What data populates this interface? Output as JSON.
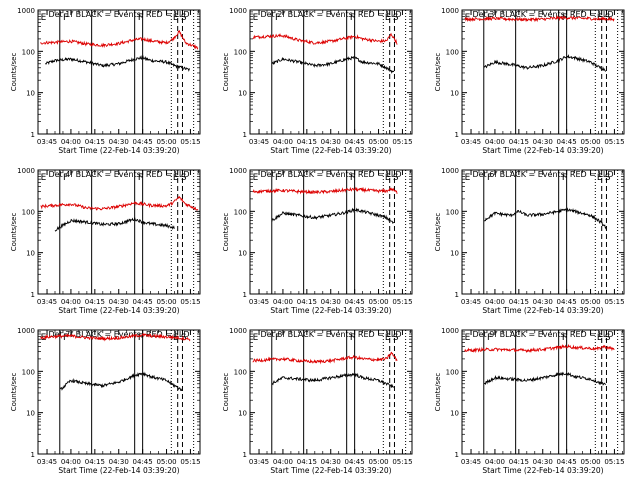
{
  "figure": {
    "background": "#ffffff",
    "colors": {
      "events": "#000000",
      "lld": "#dd0000",
      "axes": "#000000"
    }
  },
  "common": {
    "xlabel": "Start Time (22-Feb-14 03:39:20)",
    "ylabel": "Counts/sec",
    "x_ticks": [
      "03:45",
      "04:00",
      "04:15",
      "04:30",
      "04:45",
      "05:00",
      "05:15"
    ],
    "y_ticks": [
      "1",
      "10",
      "100",
      "1000"
    ],
    "y_scale": "log",
    "ylim": [
      1,
      1000
    ],
    "xlim": [
      "03:39:20",
      "05:21:00"
    ],
    "event_markers": {
      "solid_lines": [
        "03:53",
        "04:13",
        "04:40",
        "04:45"
      ],
      "dotted_lines": [
        "05:03",
        "05:17"
      ],
      "dashed_lines": [
        "05:07",
        "05:10"
      ],
      "labels": [
        {
          "text": "E",
          "x": "03:41"
        },
        {
          "text": "F",
          "x": "03:55"
        },
        {
          "text": "F",
          "x": "04:42"
        },
        {
          "text": "E",
          "x": "05:04"
        },
        {
          "text": "S",
          "x": "05:09"
        }
      ]
    }
  },
  "chart_data": [
    {
      "type": "line",
      "title": "Det 1f BLACK = Events, RED = LLD",
      "series": [
        {
          "name": "Events",
          "color": "#000000",
          "points": [
            [
              "03:44",
              50
            ],
            [
              "03:50",
              60
            ],
            [
              "04:00",
              65
            ],
            [
              "04:10",
              55
            ],
            [
              "04:20",
              45
            ],
            [
              "04:30",
              50
            ],
            [
              "04:40",
              65
            ],
            [
              "04:45",
              70
            ],
            [
              "04:50",
              60
            ],
            [
              "05:00",
              55
            ],
            [
              "05:05",
              45
            ],
            [
              "05:10",
              40
            ],
            [
              "05:15",
              35
            ]
          ]
        },
        {
          "name": "LLD",
          "color": "#dd0000",
          "points": [
            [
              "03:41",
              160
            ],
            [
              "03:50",
              165
            ],
            [
              "04:00",
              175
            ],
            [
              "04:10",
              150
            ],
            [
              "04:20",
              140
            ],
            [
              "04:30",
              155
            ],
            [
              "04:40",
              190
            ],
            [
              "04:45",
              200
            ],
            [
              "04:50",
              180
            ],
            [
              "05:00",
              160
            ],
            [
              "05:04",
              200
            ],
            [
              "05:08",
              300
            ],
            [
              "05:12",
              160
            ],
            [
              "05:20",
              120
            ]
          ]
        }
      ]
    },
    {
      "type": "line",
      "title": "Det 2f BLACK = Events, RED = LLD",
      "series": [
        {
          "name": "Events",
          "color": "#000000",
          "points": [
            [
              "03:53",
              50
            ],
            [
              "04:00",
              65
            ],
            [
              "04:10",
              55
            ],
            [
              "04:20",
              45
            ],
            [
              "04:30",
              50
            ],
            [
              "04:40",
              65
            ],
            [
              "04:45",
              70
            ],
            [
              "04:50",
              55
            ],
            [
              "05:00",
              50
            ],
            [
              "05:05",
              40
            ],
            [
              "05:10",
              30
            ]
          ]
        },
        {
          "name": "LLD",
          "color": "#dd0000",
          "points": [
            [
              "03:41",
              220
            ],
            [
              "03:50",
              230
            ],
            [
              "04:00",
              240
            ],
            [
              "04:10",
              185
            ],
            [
              "04:20",
              160
            ],
            [
              "04:30",
              175
            ],
            [
              "04:40",
              210
            ],
            [
              "04:45",
              230
            ],
            [
              "04:50",
              200
            ],
            [
              "05:00",
              175
            ],
            [
              "05:05",
              180
            ],
            [
              "05:08",
              260
            ],
            [
              "05:12",
              150
            ]
          ]
        }
      ]
    },
    {
      "type": "line",
      "title": "Det 3f BLACK = Events, RED = LLD",
      "series": [
        {
          "name": "Events",
          "color": "#000000",
          "points": [
            [
              "03:53",
              40
            ],
            [
              "04:00",
              55
            ],
            [
              "04:10",
              48
            ],
            [
              "04:20",
              40
            ],
            [
              "04:30",
              45
            ],
            [
              "04:40",
              60
            ],
            [
              "04:45",
              75
            ],
            [
              "04:50",
              70
            ],
            [
              "05:00",
              55
            ],
            [
              "05:05",
              42
            ],
            [
              "05:10",
              35
            ]
          ]
        },
        {
          "name": "LLD",
          "color": "#dd0000",
          "points": [
            [
              "03:41",
              600
            ],
            [
              "03:50",
              610
            ],
            [
              "04:00",
              620
            ],
            [
              "04:10",
              600
            ],
            [
              "04:20",
              590
            ],
            [
              "04:30",
              600
            ],
            [
              "04:40",
              640
            ],
            [
              "04:45",
              650
            ],
            [
              "04:50",
              640
            ],
            [
              "05:00",
              620
            ],
            [
              "05:05",
              600
            ],
            [
              "05:08",
              620
            ],
            [
              "05:15",
              580
            ]
          ]
        }
      ]
    },
    {
      "type": "line",
      "title": "Det 4f BLACK = Events, RED = LLD",
      "series": [
        {
          "name": "Events",
          "color": "#000000",
          "points": [
            [
              "03:50",
              35
            ],
            [
              "04:00",
              60
            ],
            [
              "04:10",
              55
            ],
            [
              "04:20",
              48
            ],
            [
              "04:30",
              50
            ],
            [
              "04:40",
              65
            ],
            [
              "04:45",
              55
            ],
            [
              "04:50",
              50
            ],
            [
              "05:00",
              45
            ],
            [
              "05:05",
              40
            ]
          ]
        },
        {
          "name": "LLD",
          "color": "#dd0000",
          "points": [
            [
              "03:41",
              130
            ],
            [
              "03:50",
              140
            ],
            [
              "04:00",
              150
            ],
            [
              "04:10",
              120
            ],
            [
              "04:20",
              115
            ],
            [
              "04:30",
              130
            ],
            [
              "04:40",
              160
            ],
            [
              "04:45",
              150
            ],
            [
              "04:50",
              140
            ],
            [
              "05:00",
              135
            ],
            [
              "05:04",
              160
            ],
            [
              "05:08",
              220
            ],
            [
              "05:12",
              150
            ],
            [
              "05:20",
              110
            ]
          ]
        }
      ]
    },
    {
      "type": "line",
      "title": "Det 5f BLACK = Events, RED = LLD",
      "series": [
        {
          "name": "Events",
          "color": "#000000",
          "points": [
            [
              "03:53",
              60
            ],
            [
              "04:00",
              90
            ],
            [
              "04:10",
              80
            ],
            [
              "04:20",
              70
            ],
            [
              "04:30",
              80
            ],
            [
              "04:40",
              95
            ],
            [
              "04:45",
              110
            ],
            [
              "04:50",
              100
            ],
            [
              "05:00",
              80
            ],
            [
              "05:05",
              70
            ],
            [
              "05:10",
              50
            ]
          ]
        },
        {
          "name": "LLD",
          "color": "#dd0000",
          "points": [
            [
              "03:41",
              300
            ],
            [
              "03:50",
              310
            ],
            [
              "04:00",
              320
            ],
            [
              "04:10",
              300
            ],
            [
              "04:20",
              290
            ],
            [
              "04:30",
              300
            ],
            [
              "04:40",
              330
            ],
            [
              "04:45",
              340
            ],
            [
              "04:50",
              330
            ],
            [
              "05:00",
              310
            ],
            [
              "05:05",
              310
            ],
            [
              "05:08",
              350
            ],
            [
              "05:12",
              280
            ]
          ]
        }
      ]
    },
    {
      "type": "line",
      "title": "Det 6f BLACK = Events, RED = LLD",
      "series": [
        {
          "name": "Events",
          "color": "#000000",
          "points": [
            [
              "03:53",
              60
            ],
            [
              "04:00",
              90
            ],
            [
              "04:10",
              80
            ],
            [
              "04:15",
              100
            ],
            [
              "04:20",
              80
            ],
            [
              "04:30",
              85
            ],
            [
              "04:40",
              100
            ],
            [
              "04:45",
              110
            ],
            [
              "04:50",
              100
            ],
            [
              "05:00",
              80
            ],
            [
              "05:05",
              60
            ],
            [
              "05:10",
              40
            ]
          ]
        }
      ]
    },
    {
      "type": "line",
      "title": "Det 7f BLACK = Events, RED = LLD",
      "series": [
        {
          "name": "Events",
          "color": "#000000",
          "points": [
            [
              "03:53",
              35
            ],
            [
              "04:00",
              60
            ],
            [
              "04:10",
              50
            ],
            [
              "04:20",
              45
            ],
            [
              "04:30",
              55
            ],
            [
              "04:40",
              80
            ],
            [
              "04:45",
              90
            ],
            [
              "04:50",
              75
            ],
            [
              "05:00",
              60
            ],
            [
              "05:05",
              45
            ],
            [
              "05:10",
              35
            ]
          ]
        },
        {
          "name": "LLD",
          "color": "#dd0000",
          "points": [
            [
              "03:41",
              650
            ],
            [
              "03:50",
              700
            ],
            [
              "04:00",
              720
            ],
            [
              "04:10",
              650
            ],
            [
              "04:20",
              620
            ],
            [
              "04:30",
              640
            ],
            [
              "04:40",
              720
            ],
            [
              "04:45",
              760
            ],
            [
              "04:50",
              720
            ],
            [
              "05:00",
              680
            ],
            [
              "05:05",
              660
            ],
            [
              "05:08",
              640
            ],
            [
              "05:15",
              600
            ]
          ]
        }
      ]
    },
    {
      "type": "line",
      "title": "Det 8f BLACK = Events, RED = LLD",
      "series": [
        {
          "name": "Events",
          "color": "#000000",
          "points": [
            [
              "03:53",
              50
            ],
            [
              "04:00",
              70
            ],
            [
              "04:10",
              65
            ],
            [
              "04:20",
              60
            ],
            [
              "04:30",
              70
            ],
            [
              "04:40",
              80
            ],
            [
              "04:45",
              85
            ],
            [
              "04:50",
              70
            ],
            [
              "05:00",
              60
            ],
            [
              "05:05",
              50
            ],
            [
              "05:10",
              40
            ]
          ]
        },
        {
          "name": "LLD",
          "color": "#dd0000",
          "points": [
            [
              "03:41",
              180
            ],
            [
              "03:50",
              190
            ],
            [
              "04:00",
              200
            ],
            [
              "04:10",
              180
            ],
            [
              "04:20",
              170
            ],
            [
              "04:30",
              180
            ],
            [
              "04:40",
              210
            ],
            [
              "04:45",
              220
            ],
            [
              "04:50",
              200
            ],
            [
              "05:00",
              190
            ],
            [
              "05:05",
              200
            ],
            [
              "05:08",
              280
            ],
            [
              "05:12",
              180
            ]
          ]
        }
      ]
    },
    {
      "type": "line",
      "title": "Det 9f BLACK = Events, RED = LLD",
      "series": [
        {
          "name": "Events",
          "color": "#000000",
          "points": [
            [
              "03:53",
              50
            ],
            [
              "04:00",
              70
            ],
            [
              "04:10",
              65
            ],
            [
              "04:20",
              60
            ],
            [
              "04:30",
              70
            ],
            [
              "04:40",
              85
            ],
            [
              "04:45",
              90
            ],
            [
              "04:50",
              75
            ],
            [
              "05:00",
              65
            ],
            [
              "05:05",
              55
            ],
            [
              "05:10",
              45
            ]
          ]
        },
        {
          "name": "LLD",
          "color": "#dd0000",
          "points": [
            [
              "03:41",
              320
            ],
            [
              "03:50",
              330
            ],
            [
              "04:00",
              340
            ],
            [
              "04:10",
              330
            ],
            [
              "04:20",
              320
            ],
            [
              "04:30",
              340
            ],
            [
              "04:40",
              380
            ],
            [
              "04:45",
              400
            ],
            [
              "04:50",
              380
            ],
            [
              "05:00",
              360
            ],
            [
              "05:05",
              350
            ],
            [
              "05:08",
              400
            ],
            [
              "05:15",
              340
            ]
          ]
        }
      ]
    }
  ]
}
